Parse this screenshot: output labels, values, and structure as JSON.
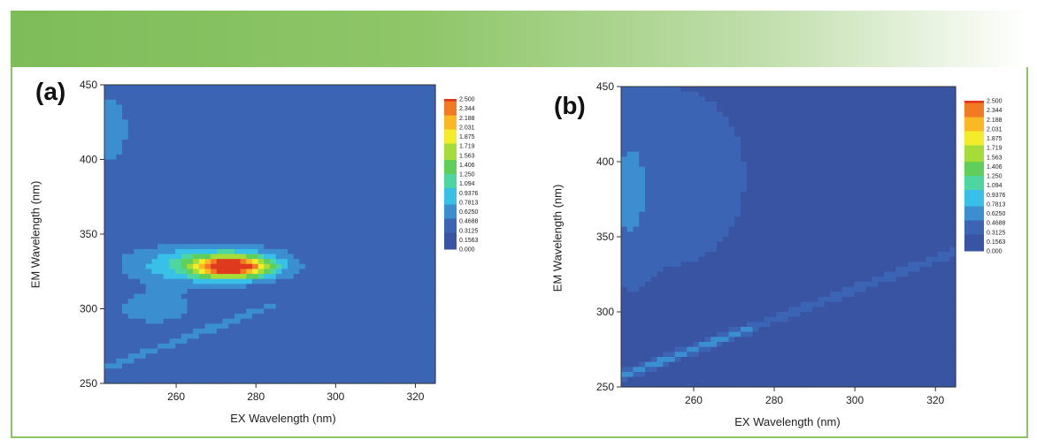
{
  "chart_data": [
    {
      "panel": "(a)",
      "type": "heatmap",
      "xlabel": "EX Wavelength (nm)",
      "ylabel": "EM Wavelength (nm)",
      "xlim": [
        242,
        325
      ],
      "ylim": [
        250,
        450
      ],
      "x_ticks": [
        260,
        280,
        300,
        320
      ],
      "y_ticks": [
        250,
        300,
        350,
        400,
        450
      ],
      "colorbar_ticks": [
        "2.500",
        "2.344",
        "2.188",
        "2.031",
        "1.875",
        "1.719",
        "1.563",
        "1.406",
        "1.250",
        "1.094",
        "0.9376",
        "0.7813",
        "0.6250",
        "0.4688",
        "0.3125",
        "0.1563",
        "0.000"
      ],
      "zlim": [
        0,
        2.5
      ],
      "peaks": [
        {
          "x": 273,
          "y": 328,
          "value": 2.4
        },
        {
          "x": 258,
          "y": 293,
          "value": 0.7
        },
        {
          "x": 250,
          "y": 425,
          "value": 0.5
        }
      ]
    },
    {
      "panel": "(b)",
      "type": "heatmap",
      "xlabel": "EX Wavelength (nm)",
      "ylabel": "EM Wavelength (nm)",
      "xlim": [
        242,
        325
      ],
      "ylim": [
        250,
        450
      ],
      "x_ticks": [
        260,
        280,
        300,
        320
      ],
      "y_ticks": [
        250,
        300,
        350,
        400,
        450
      ],
      "colorbar_ticks": [
        "2.500",
        "2.344",
        "2.188",
        "2.031",
        "1.875",
        "1.719",
        "1.563",
        "1.406",
        "1.250",
        "1.094",
        "0.9376",
        "0.7813",
        "0.6250",
        "0.4688",
        "0.3125",
        "0.1563",
        "0.000"
      ],
      "zlim": [
        0,
        2.5
      ],
      "peaks": [
        {
          "x": 246,
          "y": 370,
          "value": 0.6
        },
        {
          "x": 266,
          "y": 282,
          "value": 0.6
        }
      ]
    }
  ],
  "colors": {
    "banner_start": "#7ebc59",
    "frame": "#8cc466",
    "colormap": [
      "#3a54a4",
      "#3c64b4",
      "#3b8fd0",
      "#39c0e8",
      "#4dd6a0",
      "#5fcf5a",
      "#a6dc3a",
      "#f2ec2a",
      "#f9b824",
      "#f27a22",
      "#e03a1e"
    ]
  }
}
